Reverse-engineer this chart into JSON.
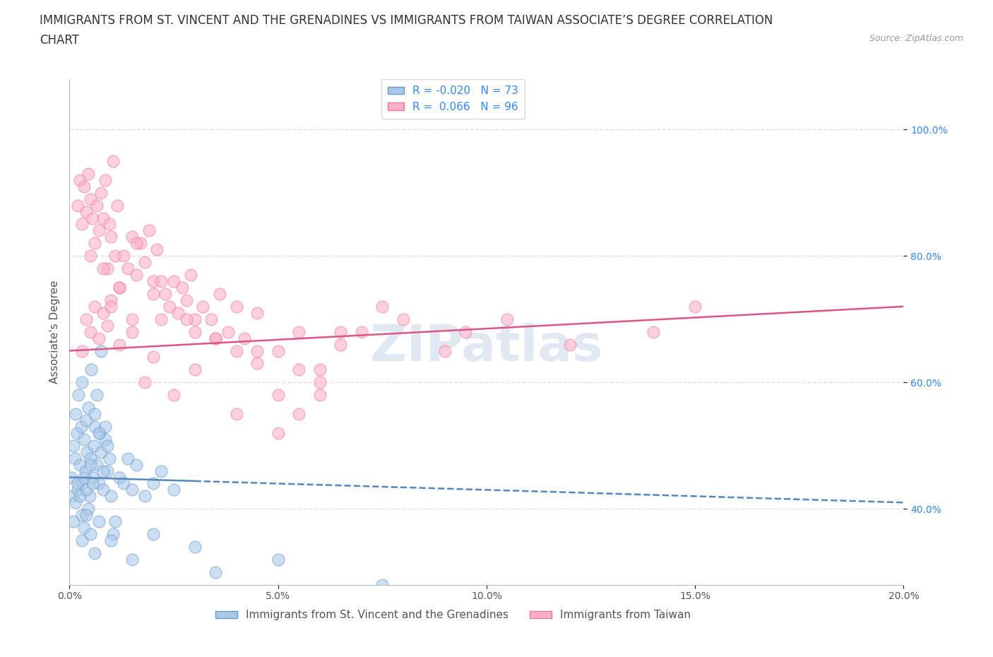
{
  "title_line1": "IMMIGRANTS FROM ST. VINCENT AND THE GRENADINES VS IMMIGRANTS FROM TAIWAN ASSOCIATE’S DEGREE CORRELATION",
  "title_line2": "CHART",
  "source": "Source: ZipAtlas.com",
  "ylabel": "Associate's Degree",
  "xlim": [
    0.0,
    20.0
  ],
  "ylim": [
    28.0,
    108.0
  ],
  "yticks": [
    40.0,
    60.0,
    80.0,
    100.0
  ],
  "ytick_labels": [
    "40.0%",
    "60.0%",
    "80.0%",
    "100.0%"
  ],
  "xticks": [
    0.0,
    5.0,
    10.0,
    15.0,
    20.0
  ],
  "xtick_labels": [
    "0.0%",
    "5.0%",
    "10.0%",
    "15.0%",
    "20.0%"
  ],
  "series": [
    {
      "name": "Immigrants from St. Vincent and the Grenadines",
      "R": -0.02,
      "N": 73,
      "scatter_color": "#aac8e8",
      "edge_color": "#6699cc",
      "line_color": "#5588bb",
      "line_style": "dashed"
    },
    {
      "name": "Immigrants from Taiwan",
      "R": 0.066,
      "N": 96,
      "scatter_color": "#ffb0c8",
      "edge_color": "#ee7799",
      "line_color": "#dd5588",
      "line_style": "solid"
    }
  ],
  "blue_x": [
    0.05,
    0.08,
    0.1,
    0.12,
    0.15,
    0.18,
    0.2,
    0.22,
    0.25,
    0.28,
    0.3,
    0.32,
    0.35,
    0.38,
    0.4,
    0.42,
    0.45,
    0.48,
    0.5,
    0.52,
    0.55,
    0.58,
    0.6,
    0.65,
    0.7,
    0.72,
    0.75,
    0.8,
    0.85,
    0.9,
    0.1,
    0.15,
    0.2,
    0.25,
    0.3,
    0.35,
    0.4,
    0.45,
    0.5,
    0.55,
    0.6,
    0.65,
    0.7,
    0.75,
    0.8,
    0.85,
    0.9,
    0.95,
    1.0,
    1.05,
    1.1,
    1.2,
    1.3,
    1.4,
    1.5,
    1.6,
    1.8,
    2.0,
    2.2,
    2.5,
    0.3,
    0.35,
    0.4,
    0.5,
    0.6,
    0.7,
    1.0,
    1.5,
    2.0,
    3.0,
    3.5,
    5.0,
    7.5
  ],
  "blue_y": [
    45,
    42,
    50,
    48,
    55,
    52,
    43,
    58,
    47,
    53,
    60,
    44,
    51,
    46,
    54,
    49,
    56,
    42,
    48,
    62,
    45,
    50,
    53,
    47,
    44,
    52,
    65,
    43,
    51,
    46,
    38,
    41,
    44,
    42,
    39,
    45,
    43,
    40,
    47,
    44,
    55,
    58,
    52,
    49,
    46,
    53,
    50,
    48,
    42,
    36,
    38,
    45,
    44,
    48,
    43,
    47,
    42,
    44,
    46,
    43,
    35,
    37,
    39,
    36,
    33,
    38,
    35,
    32,
    36,
    34,
    30,
    32,
    28
  ],
  "pink_x": [
    0.2,
    0.25,
    0.3,
    0.35,
    0.4,
    0.45,
    0.5,
    0.55,
    0.6,
    0.65,
    0.7,
    0.75,
    0.8,
    0.85,
    0.9,
    0.95,
    1.0,
    1.05,
    1.1,
    1.15,
    1.2,
    1.3,
    1.4,
    1.5,
    1.6,
    1.7,
    1.8,
    1.9,
    2.0,
    2.1,
    2.2,
    2.3,
    2.4,
    2.5,
    2.6,
    2.7,
    2.8,
    2.9,
    3.0,
    3.2,
    3.4,
    3.6,
    3.8,
    4.0,
    4.2,
    4.5,
    5.0,
    5.5,
    6.0,
    6.5,
    0.3,
    0.4,
    0.5,
    0.6,
    0.7,
    0.8,
    0.9,
    1.0,
    1.2,
    1.5,
    1.8,
    2.0,
    2.5,
    3.0,
    3.5,
    4.0,
    4.5,
    5.0,
    5.5,
    6.0,
    7.0,
    8.0,
    9.5,
    1.0,
    1.5,
    2.0,
    3.0,
    4.0,
    5.0,
    6.0,
    0.5,
    0.8,
    1.2,
    1.6,
    2.2,
    2.8,
    3.5,
    4.5,
    5.5,
    6.5,
    7.5,
    9.0,
    10.5,
    12.0,
    14.0,
    15.0
  ],
  "pink_y": [
    88,
    92,
    85,
    91,
    87,
    93,
    89,
    86,
    82,
    88,
    84,
    90,
    86,
    92,
    78,
    85,
    83,
    95,
    80,
    88,
    75,
    80,
    78,
    83,
    77,
    82,
    79,
    84,
    76,
    81,
    70,
    74,
    72,
    76,
    71,
    75,
    73,
    77,
    68,
    72,
    70,
    74,
    68,
    72,
    67,
    71,
    65,
    68,
    62,
    66,
    65,
    70,
    68,
    72,
    67,
    71,
    69,
    73,
    66,
    70,
    60,
    64,
    58,
    62,
    67,
    65,
    63,
    58,
    55,
    60,
    68,
    70,
    68,
    72,
    68,
    74,
    70,
    55,
    52,
    58,
    80,
    78,
    75,
    82,
    76,
    70,
    67,
    65,
    62,
    68,
    72,
    65,
    70,
    66,
    68,
    72
  ],
  "background_color": "#ffffff",
  "grid_color": "#e0e0e0",
  "title_fontsize": 12,
  "axis_label_fontsize": 11,
  "tick_fontsize": 10,
  "legend_fontsize": 11,
  "watermark": "ZIPatlas",
  "watermark_color": "#c8d8e8",
  "watermark_fontsize": 52
}
